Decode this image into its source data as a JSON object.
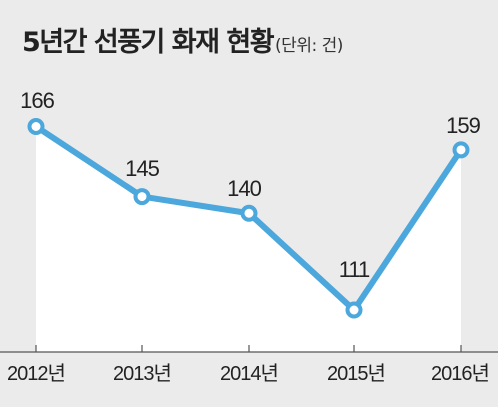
{
  "chart_data": {
    "type": "line",
    "title": "5년간 선풍기 화재 현황",
    "unit_note": "(단위: 건)",
    "categories": [
      "2012년",
      "2013년",
      "2014년",
      "2015년",
      "2016년"
    ],
    "values": [
      166,
      145,
      140,
      111,
      159
    ],
    "data_labels": [
      "166",
      "145",
      "140",
      "111",
      "159"
    ],
    "xlabel": "",
    "ylabel": "",
    "grid": false,
    "legend": "none",
    "line_color": "#4ba7dc",
    "area_color": "#ffffff",
    "background_color": "#ebebeb"
  }
}
